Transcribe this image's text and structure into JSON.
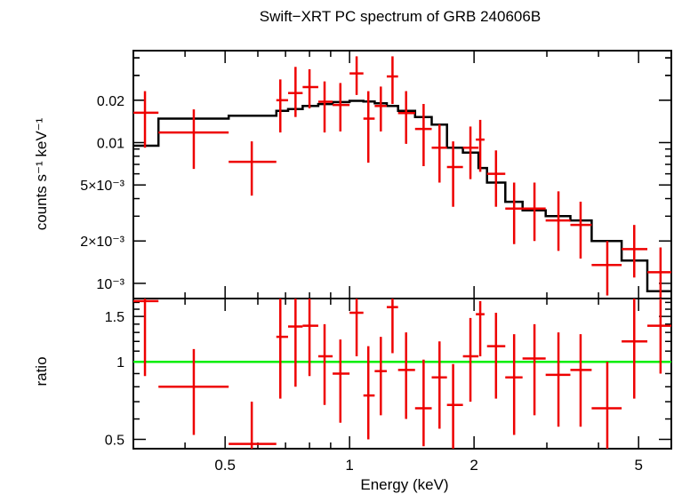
{
  "chart_data": [
    {
      "panel": "top",
      "type": "scatter",
      "title": "Swift−XRT PC spectrum of GRB 240606B",
      "xlabel": "",
      "ylabel": "counts s⁻¹ keV⁻¹",
      "xscale": "log",
      "yscale": "log",
      "xlim": [
        0.3,
        6.0
      ],
      "ylim": [
        0.00078,
        0.045
      ],
      "yticks": [
        {
          "value": 0.02,
          "label": "0.02"
        },
        {
          "value": 0.01,
          "label": "0.01"
        },
        {
          "value": 0.005,
          "label": "5×10⁻³"
        },
        {
          "value": 0.002,
          "label": "2×10⁻³"
        },
        {
          "value": 0.001,
          "label": "10⁻³"
        }
      ],
      "series": [
        {
          "name": "data",
          "color": "#ee0000",
          "points": [
            {
              "x": 0.32,
              "xlo": 0.3,
              "xhi": 0.345,
              "y": 0.0163,
              "ylo": 0.0092,
              "yhi": 0.0232
            },
            {
              "x": 0.42,
              "xlo": 0.345,
              "xhi": 0.51,
              "y": 0.0118,
              "ylo": 0.0065,
              "yhi": 0.0172
            },
            {
              "x": 0.58,
              "xlo": 0.51,
              "xhi": 0.665,
              "y": 0.0073,
              "ylo": 0.0042,
              "yhi": 0.0102
            },
            {
              "x": 0.68,
              "xlo": 0.665,
              "xhi": 0.71,
              "y": 0.02,
              "ylo": 0.0118,
              "yhi": 0.0281
            },
            {
              "x": 0.74,
              "xlo": 0.71,
              "xhi": 0.77,
              "y": 0.0225,
              "ylo": 0.0152,
              "yhi": 0.0345
            },
            {
              "x": 0.8,
              "xlo": 0.77,
              "xhi": 0.84,
              "y": 0.0248,
              "ylo": 0.0175,
              "yhi": 0.0332
            },
            {
              "x": 0.87,
              "xlo": 0.84,
              "xhi": 0.91,
              "y": 0.0195,
              "ylo": 0.0118,
              "yhi": 0.0272
            },
            {
              "x": 0.95,
              "xlo": 0.91,
              "xhi": 1.0,
              "y": 0.0185,
              "ylo": 0.012,
              "yhi": 0.0265
            },
            {
              "x": 1.04,
              "xlo": 1.0,
              "xhi": 1.08,
              "y": 0.031,
              "ylo": 0.0218,
              "yhi": 0.041
            },
            {
              "x": 1.11,
              "xlo": 1.08,
              "xhi": 1.15,
              "y": 0.0148,
              "ylo": 0.0072,
              "yhi": 0.0232
            },
            {
              "x": 1.19,
              "xlo": 1.15,
              "xhi": 1.23,
              "y": 0.0182,
              "ylo": 0.012,
              "yhi": 0.025
            },
            {
              "x": 1.27,
              "xlo": 1.23,
              "xhi": 1.31,
              "y": 0.0295,
              "ylo": 0.0188,
              "yhi": 0.041
            },
            {
              "x": 1.37,
              "xlo": 1.31,
              "xhi": 1.44,
              "y": 0.0162,
              "ylo": 0.0098,
              "yhi": 0.0232
            },
            {
              "x": 1.51,
              "xlo": 1.44,
              "xhi": 1.58,
              "y": 0.0125,
              "ylo": 0.0068,
              "yhi": 0.0188
            },
            {
              "x": 1.65,
              "xlo": 1.58,
              "xhi": 1.72,
              "y": 0.0092,
              "ylo": 0.0052,
              "yhi": 0.0135
            },
            {
              "x": 1.78,
              "xlo": 1.72,
              "xhi": 1.88,
              "y": 0.0067,
              "ylo": 0.0035,
              "yhi": 0.0102
            },
            {
              "x": 1.96,
              "xlo": 1.88,
              "xhi": 2.05,
              "y": 0.0092,
              "ylo": 0.0055,
              "yhi": 0.013
            },
            {
              "x": 2.07,
              "xlo": 2.02,
              "xhi": 2.12,
              "y": 0.0105,
              "ylo": 0.0062,
              "yhi": 0.0145
            },
            {
              "x": 2.26,
              "xlo": 2.15,
              "xhi": 2.38,
              "y": 0.006,
              "ylo": 0.0035,
              "yhi": 0.0088
            },
            {
              "x": 2.5,
              "xlo": 2.38,
              "xhi": 2.62,
              "y": 0.0034,
              "ylo": 0.0019,
              "yhi": 0.0052
            },
            {
              "x": 2.8,
              "xlo": 2.62,
              "xhi": 2.98,
              "y": 0.0034,
              "ylo": 0.002,
              "yhi": 0.0052
            },
            {
              "x": 3.2,
              "xlo": 2.98,
              "xhi": 3.42,
              "y": 0.0028,
              "ylo": 0.0017,
              "yhi": 0.0045
            },
            {
              "x": 3.62,
              "xlo": 3.42,
              "xhi": 3.85,
              "y": 0.0026,
              "ylo": 0.0015,
              "yhi": 0.0038
            },
            {
              "x": 4.2,
              "xlo": 3.85,
              "xhi": 4.55,
              "y": 0.00135,
              "ylo": 0.00082,
              "yhi": 0.002
            },
            {
              "x": 4.88,
              "xlo": 4.55,
              "xhi": 5.25,
              "y": 0.00175,
              "ylo": 0.0011,
              "yhi": 0.0026
            },
            {
              "x": 5.65,
              "xlo": 5.25,
              "xhi": 6.0,
              "y": 0.0012,
              "ylo": 0.0007,
              "yhi": 0.0018
            }
          ]
        },
        {
          "name": "model",
          "color": "#000000",
          "type": "step",
          "steps": [
            {
              "xlo": 0.3,
              "xhi": 0.345,
              "y": 0.0095
            },
            {
              "xlo": 0.345,
              "xhi": 0.51,
              "y": 0.0148
            },
            {
              "xlo": 0.51,
              "xhi": 0.665,
              "y": 0.0155
            },
            {
              "xlo": 0.665,
              "xhi": 0.71,
              "y": 0.0168
            },
            {
              "xlo": 0.71,
              "xhi": 0.77,
              "y": 0.0173
            },
            {
              "xlo": 0.77,
              "xhi": 0.84,
              "y": 0.0182
            },
            {
              "xlo": 0.84,
              "xhi": 0.91,
              "y": 0.0188
            },
            {
              "xlo": 0.91,
              "xhi": 1.0,
              "y": 0.0194
            },
            {
              "xlo": 1.0,
              "xhi": 1.08,
              "y": 0.0198
            },
            {
              "xlo": 1.08,
              "xhi": 1.15,
              "y": 0.0196
            },
            {
              "xlo": 1.15,
              "xhi": 1.23,
              "y": 0.019
            },
            {
              "xlo": 1.23,
              "xhi": 1.31,
              "y": 0.0182
            },
            {
              "xlo": 1.31,
              "xhi": 1.44,
              "y": 0.0168
            },
            {
              "xlo": 1.44,
              "xhi": 1.58,
              "y": 0.0152
            },
            {
              "xlo": 1.58,
              "xhi": 1.72,
              "y": 0.0134
            },
            {
              "xlo": 1.72,
              "xhi": 1.88,
              "y": 0.0092
            },
            {
              "xlo": 1.88,
              "xhi": 2.05,
              "y": 0.0085
            },
            {
              "xlo": 2.05,
              "xhi": 2.15,
              "y": 0.0066
            },
            {
              "xlo": 2.15,
              "xhi": 2.38,
              "y": 0.0052
            },
            {
              "xlo": 2.38,
              "xhi": 2.62,
              "y": 0.0038
            },
            {
              "xlo": 2.62,
              "xhi": 2.98,
              "y": 0.0033
            },
            {
              "xlo": 2.98,
              "xhi": 3.42,
              "y": 0.003
            },
            {
              "xlo": 3.42,
              "xhi": 3.85,
              "y": 0.0028
            },
            {
              "xlo": 3.85,
              "xhi": 4.55,
              "y": 0.002
            },
            {
              "xlo": 4.55,
              "xhi": 5.25,
              "y": 0.00145
            },
            {
              "xlo": 5.25,
              "xhi": 6.0,
              "y": 0.00088
            }
          ]
        }
      ]
    },
    {
      "panel": "bottom",
      "type": "scatter",
      "xlabel": "Energy (keV)",
      "ylabel": "ratio",
      "xscale": "log",
      "yscale": "log",
      "xlim": [
        0.3,
        6.0
      ],
      "ylim": [
        0.46,
        1.76
      ],
      "xticks": [
        {
          "value": 0.5,
          "label": "0.5"
        },
        {
          "value": 1,
          "label": "1"
        },
        {
          "value": 2,
          "label": "2"
        },
        {
          "value": 5,
          "label": "5"
        }
      ],
      "yticks": [
        {
          "value": 0.5,
          "label": "0.5"
        },
        {
          "value": 1,
          "label": "1"
        },
        {
          "value": 1.5,
          "label": "1.5"
        }
      ],
      "reference_line": {
        "y": 1.0,
        "color": "#00ee00"
      },
      "series": [
        {
          "name": "ratio",
          "color": "#ee0000",
          "points": [
            {
              "x": 0.32,
              "xlo": 0.3,
              "xhi": 0.345,
              "y": 1.72,
              "ylo": 0.88,
              "yhi": 1.76
            },
            {
              "x": 0.42,
              "xlo": 0.345,
              "xhi": 0.51,
              "y": 0.8,
              "ylo": 0.52,
              "yhi": 1.12
            },
            {
              "x": 0.58,
              "xlo": 0.51,
              "xhi": 0.665,
              "y": 0.48,
              "ylo": 0.46,
              "yhi": 0.7
            },
            {
              "x": 0.68,
              "xlo": 0.665,
              "xhi": 0.71,
              "y": 1.25,
              "ylo": 0.72,
              "yhi": 1.76
            },
            {
              "x": 0.74,
              "xlo": 0.71,
              "xhi": 0.77,
              "y": 1.37,
              "ylo": 0.8,
              "yhi": 1.76
            },
            {
              "x": 0.8,
              "xlo": 0.77,
              "xhi": 0.84,
              "y": 1.38,
              "ylo": 0.88,
              "yhi": 1.76
            },
            {
              "x": 0.87,
              "xlo": 0.84,
              "xhi": 0.91,
              "y": 1.05,
              "ylo": 0.68,
              "yhi": 1.4
            },
            {
              "x": 0.95,
              "xlo": 0.91,
              "xhi": 1.0,
              "y": 0.9,
              "ylo": 0.58,
              "yhi": 1.22
            },
            {
              "x": 1.04,
              "xlo": 1.0,
              "xhi": 1.08,
              "y": 1.55,
              "ylo": 1.05,
              "yhi": 1.76
            },
            {
              "x": 1.11,
              "xlo": 1.08,
              "xhi": 1.15,
              "y": 0.74,
              "ylo": 0.5,
              "yhi": 1.15
            },
            {
              "x": 1.19,
              "xlo": 1.15,
              "xhi": 1.23,
              "y": 0.92,
              "ylo": 0.62,
              "yhi": 1.25
            },
            {
              "x": 1.27,
              "xlo": 1.23,
              "xhi": 1.31,
              "y": 1.63,
              "ylo": 1.08,
              "yhi": 1.76
            },
            {
              "x": 1.37,
              "xlo": 1.31,
              "xhi": 1.44,
              "y": 0.93,
              "ylo": 0.6,
              "yhi": 1.3
            },
            {
              "x": 1.51,
              "xlo": 1.44,
              "xhi": 1.58,
              "y": 0.66,
              "ylo": 0.47,
              "yhi": 1.02
            },
            {
              "x": 1.65,
              "xlo": 1.58,
              "xhi": 1.72,
              "y": 0.87,
              "ylo": 0.55,
              "yhi": 1.2
            },
            {
              "x": 1.78,
              "xlo": 1.72,
              "xhi": 1.88,
              "y": 0.68,
              "ylo": 0.46,
              "yhi": 0.98
            },
            {
              "x": 1.96,
              "xlo": 1.88,
              "xhi": 2.05,
              "y": 1.05,
              "ylo": 0.7,
              "yhi": 1.48
            },
            {
              "x": 2.07,
              "xlo": 2.02,
              "xhi": 2.12,
              "y": 1.53,
              "ylo": 1.05,
              "yhi": 1.72
            },
            {
              "x": 2.26,
              "xlo": 2.15,
              "xhi": 2.38,
              "y": 1.15,
              "ylo": 0.72,
              "yhi": 1.55
            },
            {
              "x": 2.5,
              "xlo": 2.38,
              "xhi": 2.62,
              "y": 0.87,
              "ylo": 0.52,
              "yhi": 1.28
            },
            {
              "x": 2.8,
              "xlo": 2.62,
              "xhi": 2.98,
              "y": 1.03,
              "ylo": 0.62,
              "yhi": 1.4
            },
            {
              "x": 3.2,
              "xlo": 2.98,
              "xhi": 3.42,
              "y": 0.89,
              "ylo": 0.56,
              "yhi": 1.3
            },
            {
              "x": 3.62,
              "xlo": 3.42,
              "xhi": 3.85,
              "y": 0.93,
              "ylo": 0.56,
              "yhi": 1.28
            },
            {
              "x": 4.2,
              "xlo": 3.85,
              "xhi": 4.55,
              "y": 0.66,
              "ylo": 0.46,
              "yhi": 1.0
            },
            {
              "x": 4.88,
              "xlo": 4.55,
              "xhi": 5.25,
              "y": 1.2,
              "ylo": 0.72,
              "yhi": 1.76
            },
            {
              "x": 5.65,
              "xlo": 5.25,
              "xhi": 6.0,
              "y": 1.38,
              "ylo": 0.9,
              "yhi": 1.76
            }
          ]
        }
      ]
    }
  ]
}
